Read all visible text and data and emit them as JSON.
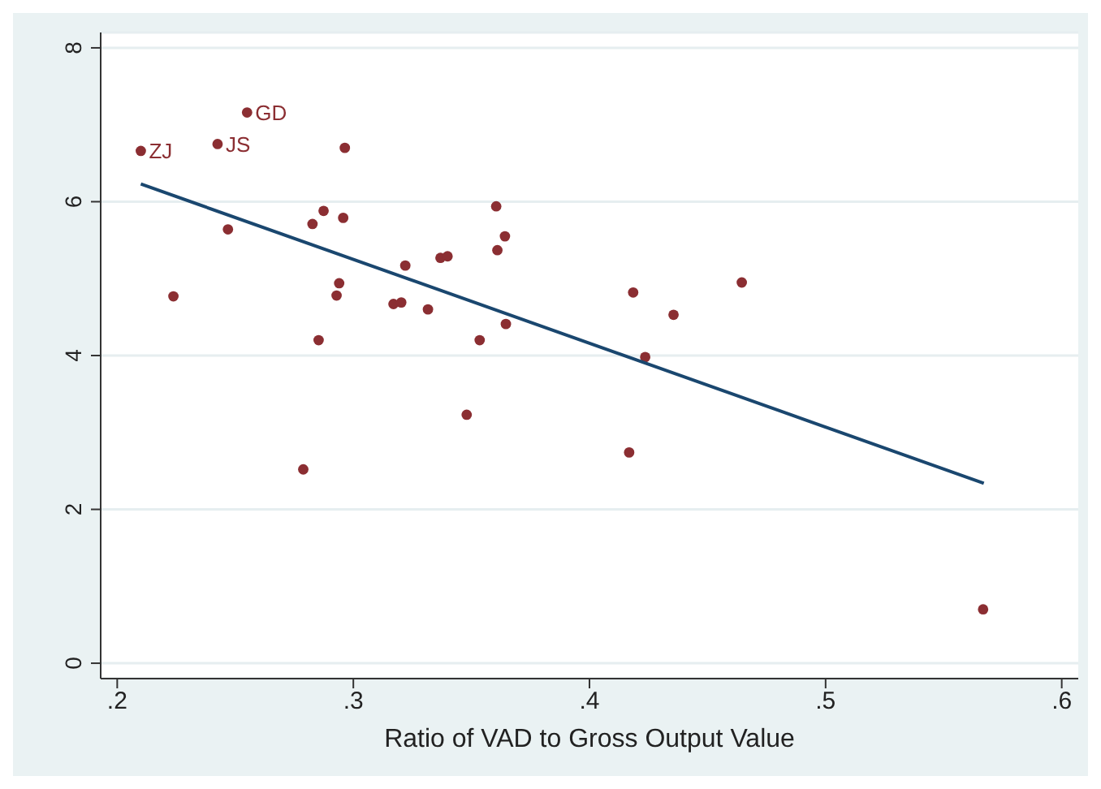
{
  "chart_data": {
    "type": "scatter",
    "xlabel": "Ratio of VAD to Gross Output Value",
    "xlim": [
      0.193,
      0.607
    ],
    "ylim": [
      -0.2,
      8.2
    ],
    "xticks": [
      {
        "value": 0.2,
        "label": ".2"
      },
      {
        "value": 0.3,
        "label": ".3"
      },
      {
        "value": 0.4,
        "label": ".4"
      },
      {
        "value": 0.5,
        "label": ".5"
      },
      {
        "value": 0.6,
        "label": ".6"
      }
    ],
    "yticks": [
      0,
      2,
      4,
      6,
      8
    ],
    "grid": "y",
    "legend": false,
    "marker": "circle",
    "series": [
      {
        "color": "#8b2e32",
        "x": [
          0.21,
          0.2425,
          0.255,
          0.2964,
          0.2469,
          0.2238,
          0.2827,
          0.2874,
          0.2957,
          0.294,
          0.2929,
          0.2853,
          0.2788,
          0.322,
          0.317,
          0.3203,
          0.3316,
          0.3369,
          0.3399,
          0.3605,
          0.3642,
          0.361,
          0.3646,
          0.3535,
          0.348,
          0.4185,
          0.4356,
          0.4645,
          0.4236,
          0.4168,
          0.5667
        ],
        "values": [
          6.66,
          6.75,
          7.16,
          6.7,
          5.64,
          4.77,
          5.71,
          5.88,
          5.79,
          4.94,
          4.78,
          4.2,
          2.52,
          5.17,
          4.67,
          4.69,
          4.6,
          5.27,
          5.29,
          5.94,
          5.55,
          5.37,
          4.41,
          4.2,
          3.23,
          4.82,
          4.53,
          4.95,
          3.98,
          2.74,
          0.7
        ]
      },
      {
        "type": "line",
        "color": "#1a476f",
        "marker": "none",
        "x": [
          0.21,
          0.567
        ],
        "values": [
          6.23,
          2.34
        ]
      }
    ],
    "annotations": [
      {
        "text": "ZJ",
        "x": 0.21,
        "y": 6.66
      },
      {
        "text": "JS",
        "x": 0.2425,
        "y": 6.75
      },
      {
        "text": "GD",
        "x": 0.255,
        "y": 7.16
      }
    ]
  }
}
